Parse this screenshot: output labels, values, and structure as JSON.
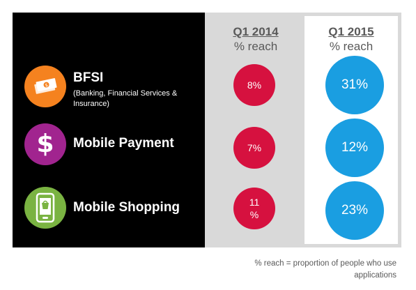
{
  "columns": [
    {
      "period": "Q1 2014",
      "unit": "% reach"
    },
    {
      "period": "Q1 2015",
      "unit": "% reach"
    }
  ],
  "rows": [
    {
      "label": "BFSI",
      "sublabel": "(Banking, Financial Services & Insurance)",
      "icon": "money-icon",
      "q1_2014": "8%",
      "q1_2015": "31%"
    },
    {
      "label": "Mobile Payment",
      "sublabel": "",
      "icon": "dollar-icon",
      "q1_2014": "7%",
      "q1_2015": "12%"
    },
    {
      "label": "Mobile Shopping",
      "sublabel": "",
      "icon": "shopping-phone-icon",
      "q1_2014": "11 %",
      "q1_2015": "23%"
    }
  ],
  "footnote": "% reach = proportion of people who use applications",
  "colors": {
    "bfsi_icon": "#f5821f",
    "payment_icon": "#a1248f",
    "shopping_icon": "#7ab342",
    "q1_2014_bubble": "#d6113f",
    "q1_2015_bubble": "#1a9ee1"
  },
  "chart_data": {
    "type": "table",
    "categories": [
      "BFSI",
      "Mobile Payment",
      "Mobile Shopping"
    ],
    "series": [
      {
        "name": "Q1 2014",
        "values": [
          8,
          7,
          11
        ]
      },
      {
        "name": "Q1 2015",
        "values": [
          31,
          12,
          23
        ]
      }
    ]
  }
}
